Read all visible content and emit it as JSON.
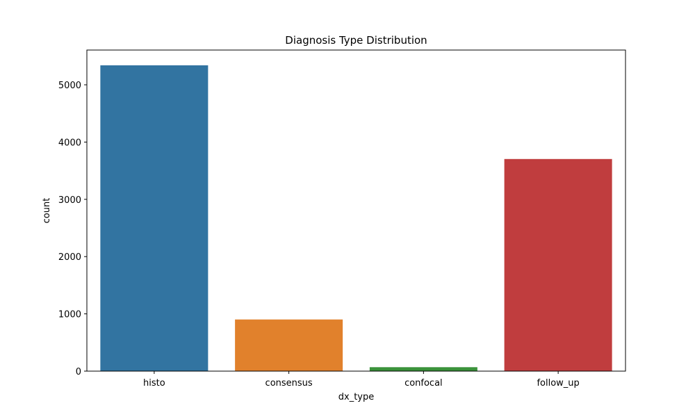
{
  "chart_data": {
    "type": "bar",
    "title": "Diagnosis Type Distribution",
    "xlabel": "dx_type",
    "ylabel": "count",
    "categories": [
      "histo",
      "consensus",
      "confocal",
      "follow_up"
    ],
    "values": [
      5340,
      902,
      69,
      3704
    ],
    "colors": [
      "#3274a1",
      "#e1812c",
      "#3a923a",
      "#c03d3e"
    ],
    "ylim": [
      0,
      5607
    ],
    "yticks": [
      0,
      1000,
      2000,
      3000,
      4000,
      5000
    ],
    "grid": false,
    "legend": "none"
  }
}
